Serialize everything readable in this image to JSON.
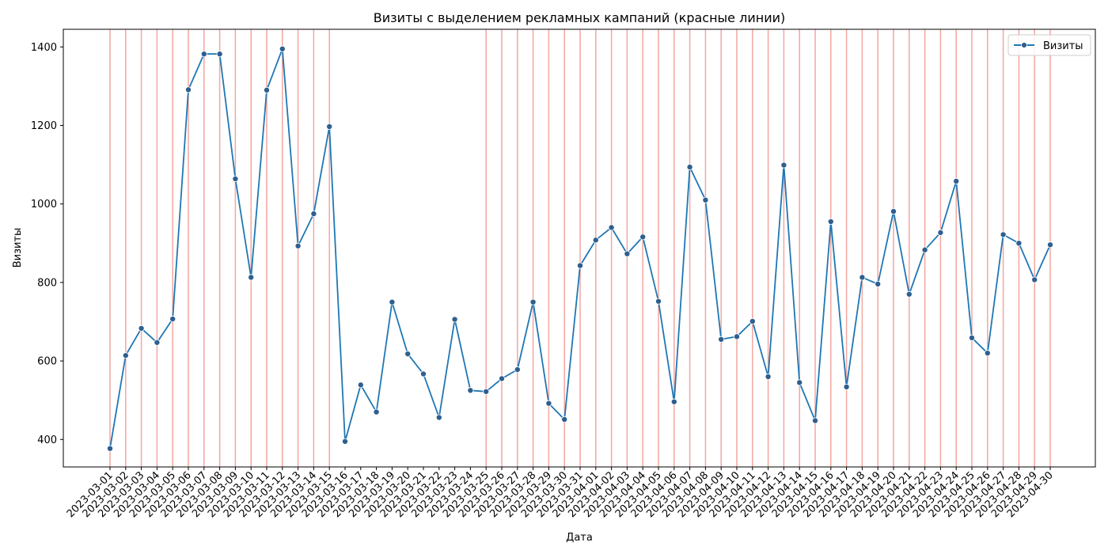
{
  "chart_data": {
    "type": "line",
    "title": "Визиты с выделением рекламных кампаний (красные линии)",
    "xlabel": "Дата",
    "ylabel": "Визиты",
    "ylim": [
      330,
      1445
    ],
    "yticks": [
      400,
      600,
      800,
      1000,
      1200,
      1400
    ],
    "grid": false,
    "legend": {
      "position": "top-right",
      "entries": [
        "Визиты"
      ]
    },
    "colors": {
      "line": "#1f77b4",
      "marker": "#2f5f8f",
      "campaign": "#f4a6a0"
    },
    "x": [
      "2023-03-01",
      "2023-03-02",
      "2023-03-03",
      "2023-03-04",
      "2023-03-05",
      "2023-03-06",
      "2023-03-07",
      "2023-03-08",
      "2023-03-09",
      "2023-03-10",
      "2023-03-11",
      "2023-03-12",
      "2023-03-13",
      "2023-03-14",
      "2023-03-15",
      "2023-03-16",
      "2023-03-17",
      "2023-03-18",
      "2023-03-19",
      "2023-03-20",
      "2023-03-21",
      "2023-03-22",
      "2023-03-23",
      "2023-03-24",
      "2023-03-25",
      "2023-03-26",
      "2023-03-27",
      "2023-03-28",
      "2023-03-29",
      "2023-03-30",
      "2023-03-31",
      "2023-04-01",
      "2023-04-02",
      "2023-04-03",
      "2023-04-04",
      "2023-04-05",
      "2023-04-06",
      "2023-04-07",
      "2023-04-08",
      "2023-04-09",
      "2023-04-10",
      "2023-04-11",
      "2023-04-12",
      "2023-04-13",
      "2023-04-14",
      "2023-04-15",
      "2023-04-16",
      "2023-04-17",
      "2023-04-18",
      "2023-04-19",
      "2023-04-20",
      "2023-04-21",
      "2023-04-22",
      "2023-04-23",
      "2023-04-24",
      "2023-04-25",
      "2023-04-26",
      "2023-04-27",
      "2023-04-28",
      "2023-04-29",
      "2023-04-30"
    ],
    "tick_labels": [
      "2023-03-01",
      "2023-03-02",
      "2023-03-03",
      "2023-03-04",
      "2023-03-05",
      "2023-03-06",
      "2023-03-07",
      "2023-03-08",
      "2023-03-09",
      "2023-03-10",
      "2023-03-11",
      "2023-03-12",
      "2023-03-13",
      "2023-03-14",
      "2023-03-15",
      "2023-03-16",
      "2023-03-17",
      "2023-03-18",
      "2023-03-19",
      "2023-03-20",
      "2023-03-21",
      "2023-03-22",
      "2023-03-23",
      "2023-03-24",
      "2023-03-25",
      "2023-03-26",
      "2023-03-27",
      "2023-03-28",
      "2023-03-29",
      "2023-03-30",
      "2023-03-31",
      "2023-04-01",
      "2023-04-02",
      "2023-04-03",
      "2023-04-04",
      "2023-04-05",
      "2023-04-06",
      "2023-04-07",
      "2023-04-08",
      "2023-04-09",
      "2023-04-10",
      "2023-04-11",
      "2023-04-12",
      "2023-04-13",
      "2023-04-14",
      "2023-04-15",
      "2023-04-16",
      "2023-04-17",
      "2023-04-18",
      "2023-04-19",
      "2023-04-20",
      "2023-04-21",
      "2023-04-22",
      "2023-04-23",
      "2023-04-24",
      "2023-04-25",
      "2023-04-26",
      "2023-04-27",
      "2023-04-28",
      "2023-04-29",
      "2023-04-30"
    ],
    "series": [
      {
        "name": "Визиты",
        "values": [
          377,
          614,
          683,
          647,
          707,
          1291,
          1382,
          1382,
          1064,
          813,
          1290,
          1395,
          893,
          975,
          1197,
          395,
          539,
          470,
          750,
          618,
          567,
          456,
          706,
          525,
          522,
          555,
          578,
          750,
          492,
          451,
          843,
          908,
          940,
          873,
          916,
          752,
          496,
          1094,
          1010,
          655,
          662,
          701,
          560,
          1099,
          545,
          448,
          955,
          534,
          813,
          796,
          981,
          770,
          883,
          927,
          1058,
          659,
          620,
          922,
          900,
          807,
          896
        ]
      }
    ],
    "campaign_dates": [
      "2023-03-01",
      "2023-03-02",
      "2023-03-03",
      "2023-03-04",
      "2023-03-05",
      "2023-03-06",
      "2023-03-07",
      "2023-03-08",
      "2023-03-09",
      "2023-03-10",
      "2023-03-11",
      "2023-03-12",
      "2023-03-13",
      "2023-03-14",
      "2023-03-15",
      "2023-03-25",
      "2023-03-26",
      "2023-03-27",
      "2023-03-28",
      "2023-03-29",
      "2023-03-30",
      "2023-03-31",
      "2023-04-01",
      "2023-04-02",
      "2023-04-03",
      "2023-04-04",
      "2023-04-05",
      "2023-04-06",
      "2023-04-07",
      "2023-04-08",
      "2023-04-09",
      "2023-04-10",
      "2023-04-11",
      "2023-04-12",
      "2023-04-13",
      "2023-04-14",
      "2023-04-15",
      "2023-04-16",
      "2023-04-17",
      "2023-04-18",
      "2023-04-19",
      "2023-04-20",
      "2023-04-21",
      "2023-04-22",
      "2023-04-23",
      "2023-04-24",
      "2023-04-25",
      "2023-04-26",
      "2023-04-27",
      "2023-04-28",
      "2023-04-29",
      "2023-04-30"
    ]
  }
}
